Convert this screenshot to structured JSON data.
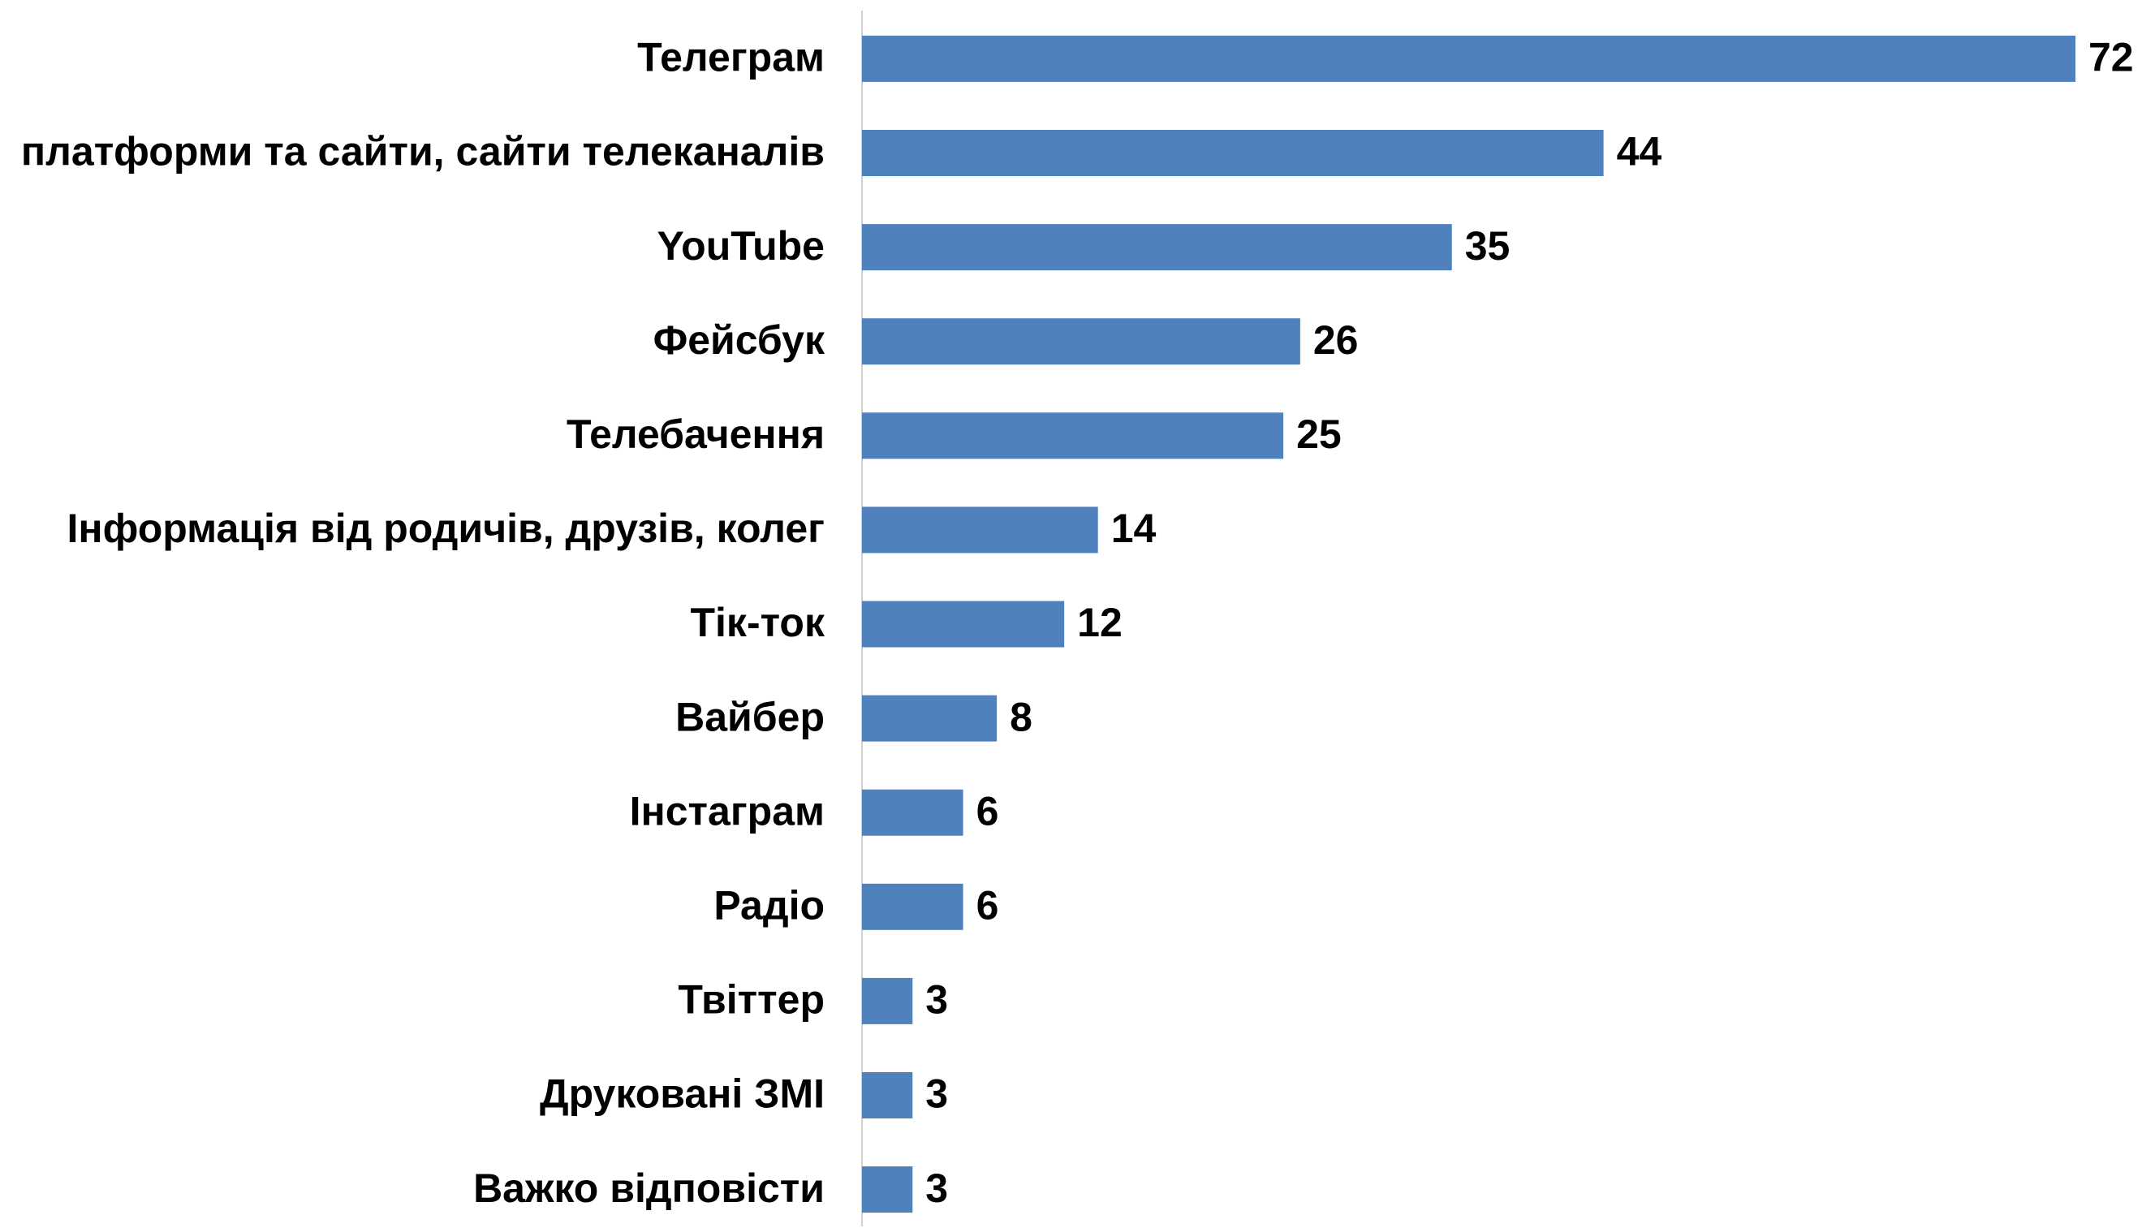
{
  "chart_data": {
    "type": "barh",
    "categories": [
      "Телеграм",
      "платформи та сайти, сайти телеканалів",
      "YouTube",
      "Фейсбук",
      "Телебачення",
      "Інформація від родичів, друзів, колег",
      "Тік-ток",
      "Вайбер",
      "Інстаграм",
      "Радіо",
      "Твіттер",
      "Друковані ЗМІ",
      "Важко відповісти"
    ],
    "values": [
      72,
      44,
      35,
      26,
      25,
      14,
      12,
      8,
      6,
      6,
      3,
      3,
      3
    ],
    "color": "#4f81bd",
    "xlim": [
      0,
      72
    ]
  }
}
